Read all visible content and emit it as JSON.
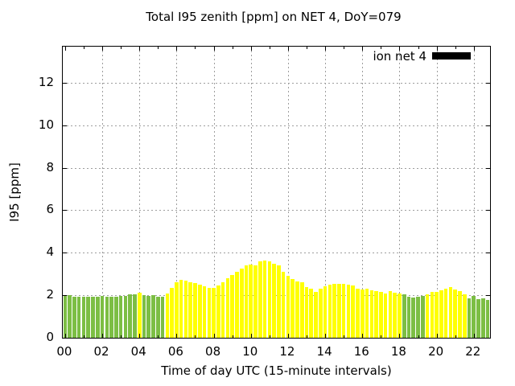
{
  "title": "Total I95 zenith [ppm] on NET 4, DoY=079",
  "legend": {
    "label": "ion net 4",
    "swatch_color": "#000000",
    "position": "top-right-inside"
  },
  "axes": {
    "xlabel": "Time of day UTC (15-minute intervals)",
    "ylabel": "I95 [ppm]",
    "x_tick_labels": [
      "00",
      "02",
      "04",
      "06",
      "08",
      "10",
      "12",
      "14",
      "16",
      "18",
      "20",
      "22"
    ],
    "y_tick_labels": [
      "0",
      "2",
      "4",
      "6",
      "8",
      "10",
      "12"
    ]
  },
  "chart_data": {
    "type": "bar",
    "title": "Total I95 zenith [ppm] on NET 4, DoY=079",
    "xlabel": "Time of day UTC (15-minute intervals)",
    "ylabel": "I95 [ppm]",
    "legend_entries": [
      "ion net 4"
    ],
    "grid": true,
    "ylim": [
      0,
      13.7
    ],
    "y_ticks": [
      0,
      2,
      4,
      6,
      8,
      10,
      12
    ],
    "x_range_hours": [
      -0.125,
      22.875
    ],
    "x_major_tick_hours": [
      0,
      2,
      4,
      6,
      8,
      10,
      12,
      14,
      16,
      18,
      20,
      22
    ],
    "interval_minutes": 15,
    "start_time": "00:00",
    "end_time": "22:45",
    "colors": {
      "yellow": "#ffff00",
      "green": "#7cbe44"
    },
    "green_index_ranges": [
      [
        0,
        15
      ],
      [
        17,
        21
      ],
      [
        73,
        77
      ],
      [
        87,
        91
      ]
    ],
    "times": [
      "00:00",
      "00:15",
      "00:30",
      "00:45",
      "01:00",
      "01:15",
      "01:30",
      "01:45",
      "02:00",
      "02:15",
      "02:30",
      "02:45",
      "03:00",
      "03:15",
      "03:30",
      "03:45",
      "04:00",
      "04:15",
      "04:30",
      "04:45",
      "05:00",
      "05:15",
      "05:30",
      "05:45",
      "06:00",
      "06:15",
      "06:30",
      "06:45",
      "07:00",
      "07:15",
      "07:30",
      "07:45",
      "08:00",
      "08:15",
      "08:30",
      "08:45",
      "09:00",
      "09:15",
      "09:30",
      "09:45",
      "10:00",
      "10:15",
      "10:30",
      "10:45",
      "11:00",
      "11:15",
      "11:30",
      "11:45",
      "12:00",
      "12:15",
      "12:30",
      "12:45",
      "13:00",
      "13:15",
      "13:30",
      "13:45",
      "14:00",
      "14:15",
      "14:30",
      "14:45",
      "15:00",
      "15:15",
      "15:30",
      "15:45",
      "16:00",
      "16:15",
      "16:30",
      "16:45",
      "17:00",
      "17:15",
      "17:30",
      "17:45",
      "18:00",
      "18:15",
      "18:30",
      "18:45",
      "19:00",
      "19:15",
      "19:30",
      "19:45",
      "20:00",
      "20:15",
      "20:30",
      "20:45",
      "21:00",
      "21:15",
      "21:30",
      "21:45",
      "22:00",
      "22:15",
      "22:30",
      "22:45"
    ],
    "values": [
      2.02,
      2.0,
      1.93,
      1.92,
      1.93,
      1.92,
      1.92,
      1.94,
      1.97,
      1.94,
      1.92,
      1.93,
      1.96,
      1.98,
      2.03,
      2.05,
      2.12,
      2.02,
      1.98,
      2.0,
      1.94,
      1.92,
      2.1,
      2.33,
      2.62,
      2.72,
      2.68,
      2.62,
      2.56,
      2.48,
      2.43,
      2.36,
      2.33,
      2.46,
      2.62,
      2.8,
      2.97,
      3.1,
      3.25,
      3.4,
      3.44,
      3.42,
      3.58,
      3.65,
      3.6,
      3.5,
      3.42,
      3.1,
      2.9,
      2.76,
      2.66,
      2.6,
      2.4,
      2.32,
      2.14,
      2.32,
      2.44,
      2.48,
      2.55,
      2.52,
      2.52,
      2.5,
      2.45,
      2.32,
      2.28,
      2.3,
      2.22,
      2.2,
      2.15,
      2.1,
      2.18,
      2.12,
      2.08,
      2.03,
      1.94,
      1.9,
      1.94,
      1.96,
      2.06,
      2.16,
      2.14,
      2.22,
      2.32,
      2.38,
      2.26,
      2.18,
      2.04,
      1.84,
      1.95,
      1.82,
      1.87,
      1.79
    ]
  }
}
